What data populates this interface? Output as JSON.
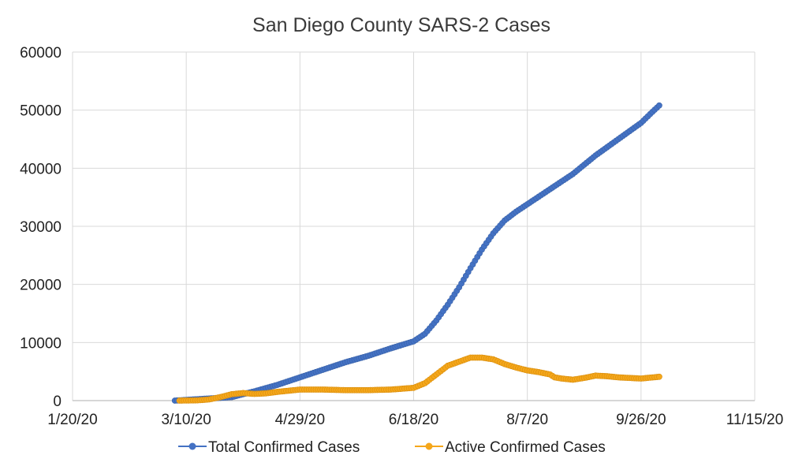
{
  "chart_data": {
    "type": "line",
    "title": "San Diego County SARS-2 Cases",
    "xlabel": "",
    "ylabel": "",
    "x_axis": {
      "type": "date",
      "range": [
        "2020-01-20",
        "2020-11-15"
      ],
      "tick_labels": [
        "1/20/20",
        "3/10/20",
        "4/29/20",
        "6/18/20",
        "8/7/20",
        "9/26/20",
        "11/15/20"
      ],
      "tick_days": [
        0,
        50,
        100,
        150,
        200,
        250,
        300
      ]
    },
    "y_axis": {
      "range": [
        0,
        60000
      ],
      "tick_labels": [
        "0",
        "10000",
        "20000",
        "30000",
        "40000",
        "50000",
        "60000"
      ],
      "ticks": [
        0,
        10000,
        20000,
        30000,
        40000,
        50000,
        60000
      ]
    },
    "grid": true,
    "legend": {
      "position": "bottom"
    },
    "series": [
      {
        "name": "Total Confirmed Cases",
        "color": "#4472c4",
        "marker": "circle",
        "points_day": [
          45,
          70,
          80,
          90,
          100,
          110,
          120,
          130,
          140,
          150,
          155,
          160,
          165,
          170,
          175,
          180,
          185,
          190,
          195,
          200,
          205,
          210,
          220,
          230,
          240,
          250,
          255,
          258
        ],
        "points_value": [
          1,
          600,
          1600,
          2700,
          4000,
          5300,
          6600,
          7700,
          9000,
          10200,
          11500,
          13800,
          16500,
          19500,
          22800,
          26000,
          28800,
          31000,
          32500,
          33800,
          35100,
          36400,
          39000,
          42200,
          45000,
          47800,
          49700,
          50800
        ]
      },
      {
        "name": "Active Confirmed Cases",
        "color": "#f5a71b",
        "marker": "circle",
        "points_day": [
          47,
          55,
          60,
          65,
          70,
          75,
          80,
          85,
          90,
          95,
          100,
          110,
          120,
          130,
          140,
          150,
          155,
          160,
          165,
          170,
          175,
          180,
          185,
          190,
          195,
          200,
          205,
          210,
          212,
          215,
          220,
          225,
          230,
          235,
          240,
          245,
          250,
          258
        ],
        "points_value": [
          0,
          50,
          200,
          600,
          1100,
          1300,
          1150,
          1250,
          1500,
          1700,
          1900,
          1900,
          1800,
          1800,
          1900,
          2200,
          3000,
          4500,
          6000,
          6700,
          7400,
          7400,
          7100,
          6300,
          5700,
          5200,
          4900,
          4500,
          4000,
          3800,
          3600,
          3900,
          4300,
          4200,
          4000,
          3900,
          3800,
          4100
        ]
      }
    ]
  }
}
